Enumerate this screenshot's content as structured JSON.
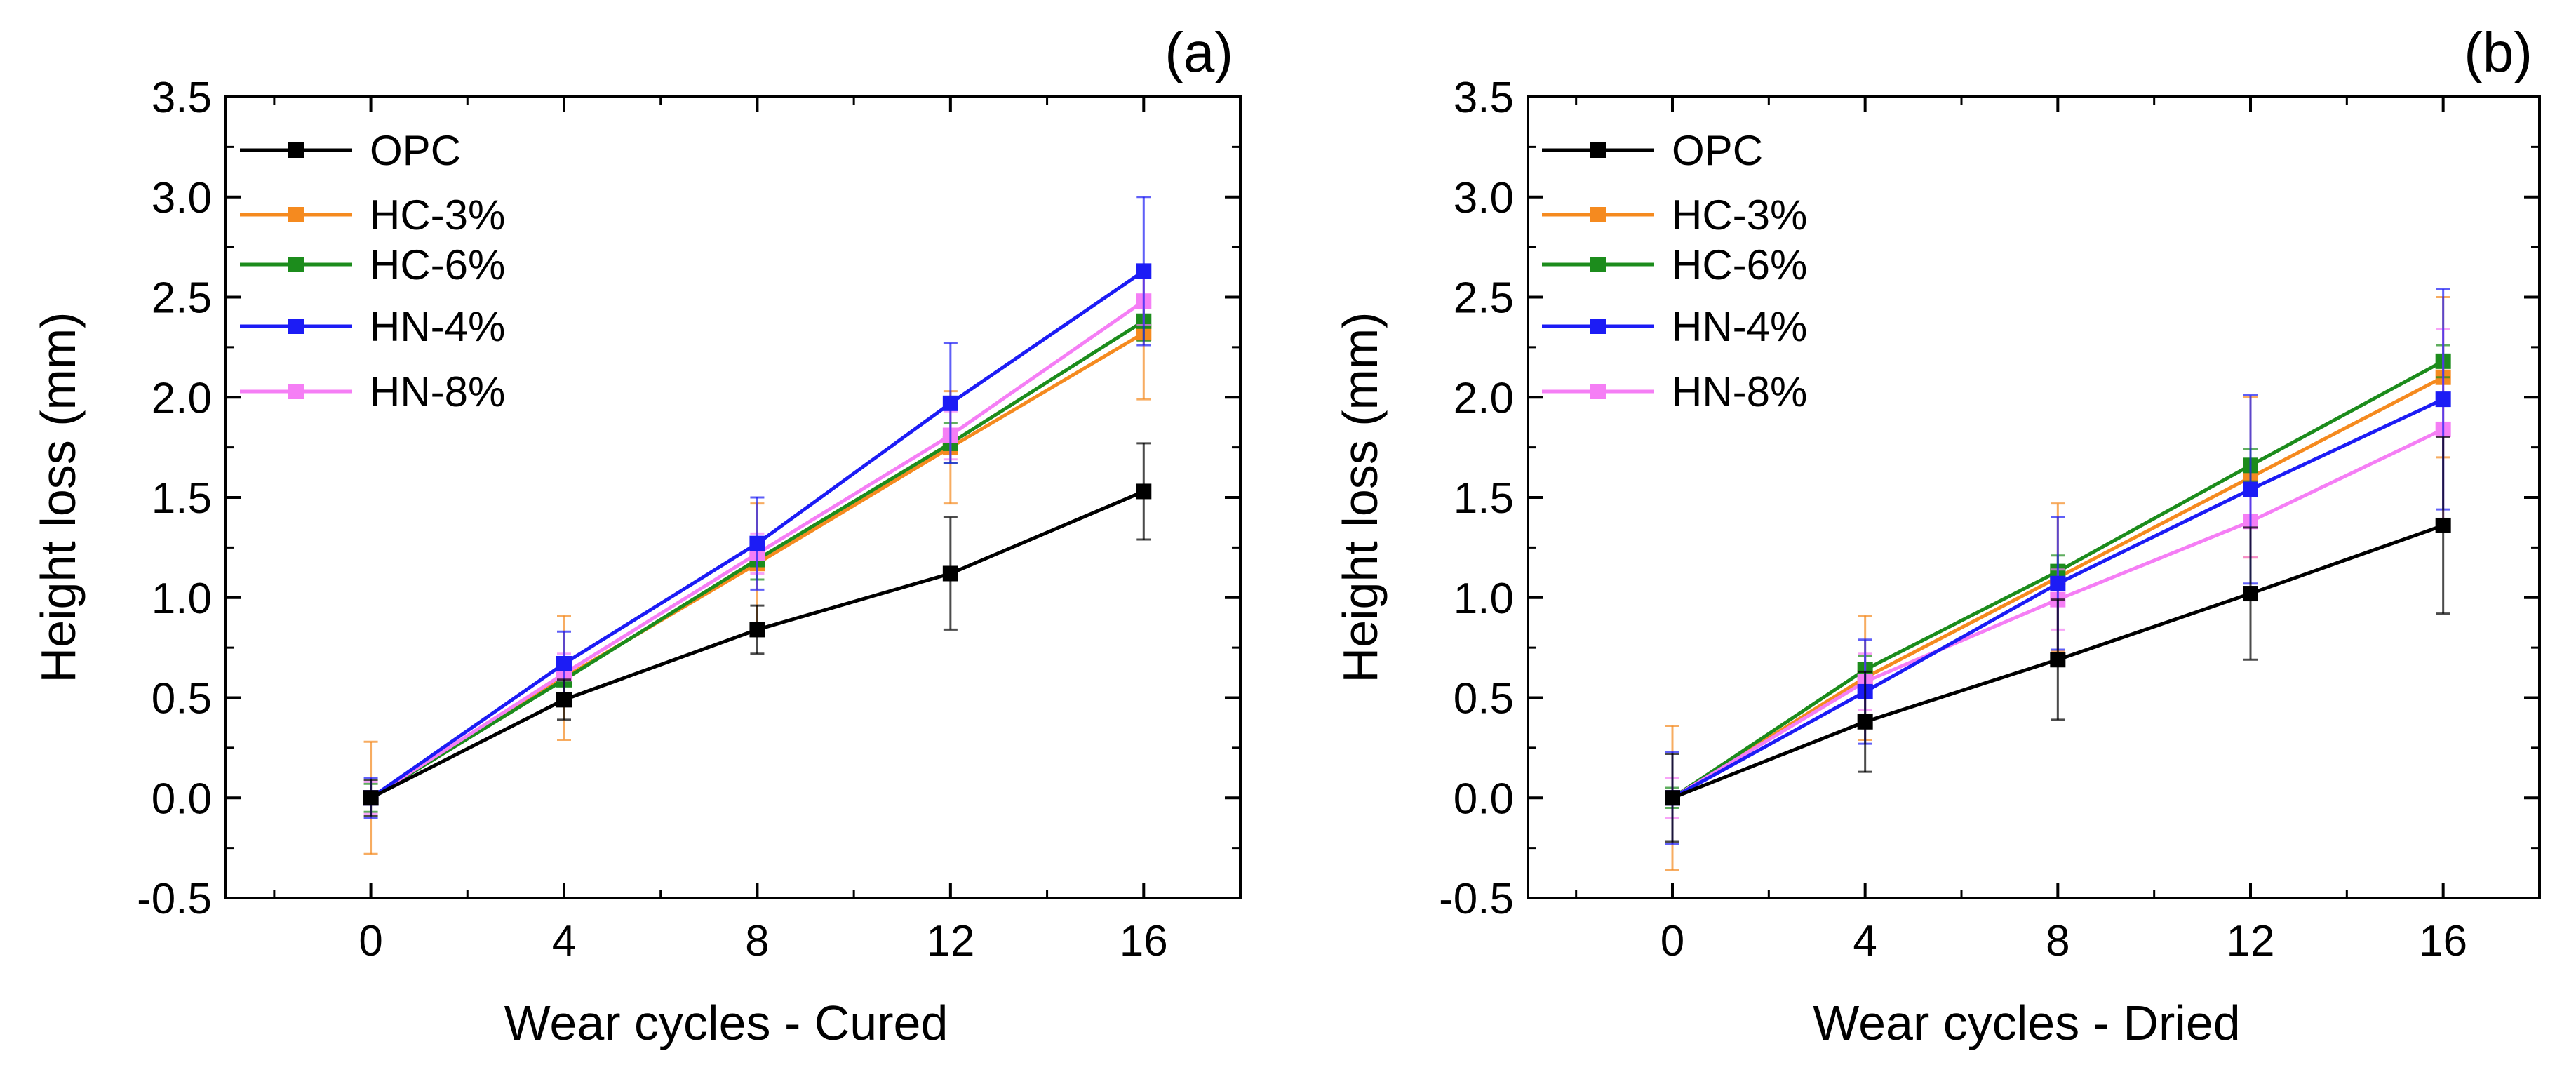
{
  "chart_data": [
    {
      "type": "line",
      "panel_label": "(a)",
      "xlabel": "Wear cycles - Cured",
      "ylabel": "Height loss (mm)",
      "x": [
        0,
        4,
        8,
        12,
        16
      ],
      "xlim": [
        -3,
        18
      ],
      "ylim": [
        -0.5,
        3.5
      ],
      "xticks": [
        0,
        4,
        8,
        12,
        16
      ],
      "yticks": [
        -0.5,
        0.0,
        0.5,
        1.0,
        1.5,
        2.0,
        2.5,
        3.0,
        3.5
      ],
      "ytick_labels": [
        "-0.5",
        "0.0",
        "0.5",
        "1.0",
        "1.5",
        "2.0",
        "2.5",
        "3.0",
        "3.5"
      ],
      "legend_position": "top-left",
      "series": [
        {
          "name": "OPC",
          "color": "#000000",
          "values": [
            0,
            0.49,
            0.84,
            1.12,
            1.53
          ],
          "errors": [
            0.09,
            0.1,
            0.12,
            0.28,
            0.24
          ]
        },
        {
          "name": "HC-3%",
          "color": "#f58a1f",
          "values": [
            0,
            0.6,
            1.17,
            1.75,
            2.32
          ],
          "errors": [
            0.28,
            0.31,
            0.3,
            0.28,
            0.33
          ]
        },
        {
          "name": "HC-6%",
          "color": "#1c8c1c",
          "values": [
            0,
            0.59,
            1.19,
            1.77,
            2.38
          ],
          "errors": [
            0.07,
            0.09,
            0.1,
            0.1,
            0.1
          ]
        },
        {
          "name": "HN-4%",
          "color": "#1c1cf5",
          "values": [
            0,
            0.67,
            1.27,
            1.97,
            2.63
          ],
          "errors": [
            0.1,
            0.16,
            0.23,
            0.3,
            0.37
          ]
        },
        {
          "name": "HN-8%",
          "color": "#f57ef5",
          "values": [
            0,
            0.62,
            1.22,
            1.81,
            2.48
          ],
          "errors": [
            0.08,
            0.1,
            0.1,
            0.12,
            0.12
          ]
        }
      ]
    },
    {
      "type": "line",
      "panel_label": "(b)",
      "xlabel": "Wear cycles - Dried",
      "ylabel": "Height loss (mm)",
      "x": [
        0,
        4,
        8,
        12,
        16
      ],
      "xlim": [
        -3,
        18
      ],
      "ylim": [
        -0.5,
        3.5
      ],
      "xticks": [
        0,
        4,
        8,
        12,
        16
      ],
      "yticks": [
        -0.5,
        0.0,
        0.5,
        1.0,
        1.5,
        2.0,
        2.5,
        3.0,
        3.5
      ],
      "ytick_labels": [
        "-0.5",
        "0.0",
        "0.5",
        "1.0",
        "1.5",
        "2.0",
        "2.5",
        "3.0",
        "3.5"
      ],
      "legend_position": "top-left",
      "series": [
        {
          "name": "OPC",
          "color": "#000000",
          "values": [
            0,
            0.38,
            0.69,
            1.02,
            1.36
          ],
          "errors": [
            0.22,
            0.25,
            0.3,
            0.33,
            0.44
          ]
        },
        {
          "name": "HC-3%",
          "color": "#f58a1f",
          "values": [
            0,
            0.6,
            1.1,
            1.6,
            2.1
          ],
          "errors": [
            0.36,
            0.31,
            0.37,
            0.4,
            0.4
          ]
        },
        {
          "name": "HC-6%",
          "color": "#1c8c1c",
          "values": [
            0,
            0.64,
            1.13,
            1.66,
            2.18
          ],
          "errors": [
            0.05,
            0.07,
            0.08,
            0.08,
            0.08
          ]
        },
        {
          "name": "HN-4%",
          "color": "#1c1cf5",
          "values": [
            0,
            0.53,
            1.07,
            1.54,
            1.99
          ],
          "errors": [
            0.23,
            0.26,
            0.33,
            0.47,
            0.55
          ]
        },
        {
          "name": "HN-8%",
          "color": "#f57ef5",
          "values": [
            0,
            0.58,
            0.99,
            1.38,
            1.84
          ],
          "errors": [
            0.1,
            0.14,
            0.15,
            0.18,
            0.5
          ]
        }
      ]
    }
  ]
}
